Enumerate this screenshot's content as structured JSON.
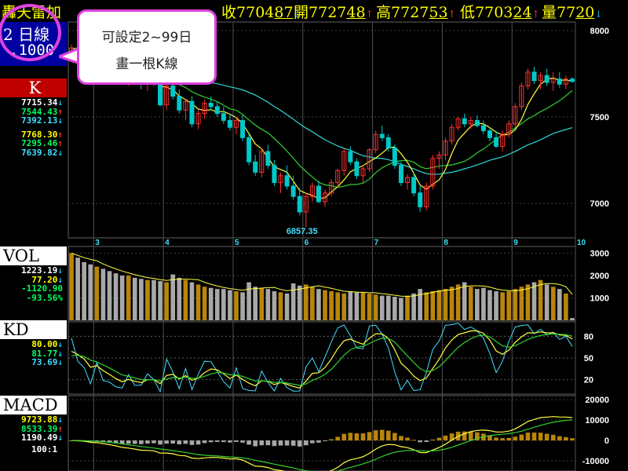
{
  "header": {
    "name": "轟天雷加",
    "close_prefix": "收",
    "close_main": "7704",
    "close_last": "87",
    "close_dir": "↓",
    "open_prefix": "開",
    "open_main": "7727",
    "open_last": "48",
    "open_dir": "↑",
    "high_prefix": "高",
    "high_main": "7727",
    "high_last": "53",
    "high_dir": "↑",
    "low_prefix": "低",
    "low_main": "7703",
    "low_last": "24",
    "low_dir": "↑",
    "vol_prefix": "量",
    "vol_main": "77",
    "vol_last": "20",
    "vol_dir": "↓"
  },
  "period": {
    "line1": "2 日線",
    "line2": ".1000"
  },
  "callout": {
    "line1": "可設定2~99日",
    "line2": "畫一根K線"
  },
  "colors": {
    "up": "#ff3030",
    "down": "#00c8c8",
    "vol_up": "#b8860b",
    "vol_down": "#a8a8a8",
    "ma_yellow": "#ffff40",
    "ma_green": "#30d030",
    "ma_cyan": "#30d8d8",
    "callout_border": "#e040e0"
  },
  "panels": {
    "k": {
      "label": "K",
      "values": [
        {
          "text": "7715.34",
          "color": "c-w",
          "arrow": "↓",
          "dir": "ar-d"
        },
        {
          "text": "7544.43",
          "color": "c-g",
          "arrow": "↑",
          "dir": "ar-u"
        },
        {
          "text": "7392.13",
          "color": "c-c",
          "arrow": "↓",
          "dir": "ar-d"
        },
        {
          "text": "7768.30",
          "color": "c-y",
          "arrow": "↑",
          "dir": "ar-u"
        },
        {
          "text": "7295.46",
          "color": "c-g",
          "arrow": "↑",
          "dir": "ar-u"
        },
        {
          "text": "7639.82",
          "color": "c-c",
          "arrow": "↓",
          "dir": "ar-d"
        }
      ]
    },
    "vol": {
      "label": "VOL",
      "values": [
        {
          "text": "1223.19",
          "color": "c-w",
          "arrow": "↓",
          "dir": "ar-d"
        },
        {
          "text": "77.20",
          "color": "c-y",
          "arrow": "↓",
          "dir": "ar-d"
        },
        {
          "text": "",
          "color": "c-w",
          "arrow": "",
          "dir": ""
        },
        {
          "text": "-1120.90",
          "color": "c-g",
          "arrow": "",
          "dir": ""
        },
        {
          "text": "-93.56%",
          "color": "c-g",
          "arrow": "",
          "dir": ""
        }
      ]
    },
    "kd": {
      "label": "KD",
      "values": [
        {
          "text": "80.00",
          "color": "c-y",
          "arrow": "↓",
          "dir": "ar-d"
        },
        {
          "text": "81.77",
          "color": "c-g",
          "arrow": "↓",
          "dir": "ar-d"
        },
        {
          "text": "73.69",
          "color": "c-c",
          "arrow": "↓",
          "dir": "ar-d"
        }
      ]
    },
    "macd": {
      "label": "MACD",
      "values": [
        {
          "text": "9723.88",
          "color": "c-y",
          "arrow": "↓",
          "dir": "ar-d"
        },
        {
          "text": "8533.39",
          "color": "c-g",
          "arrow": "↑",
          "dir": "ar-u"
        },
        {
          "text": "1190.49",
          "color": "c-w",
          "arrow": "↓",
          "dir": "ar-d"
        }
      ],
      "ratio": "100:1"
    }
  },
  "chart_data": {
    "type": "candlestick",
    "x_labels": [
      {
        "label": "3",
        "index": 4
      },
      {
        "label": "4",
        "index": 15
      },
      {
        "label": "5",
        "index": 26
      },
      {
        "label": "6",
        "index": 37
      },
      {
        "label": "7",
        "index": 48
      },
      {
        "label": "8",
        "index": 59
      },
      {
        "label": "9",
        "index": 70
      },
      {
        "label": "10",
        "index": 80
      }
    ],
    "price_ticks": [
      8000,
      7500,
      7000
    ],
    "price_range": [
      6800,
      8050
    ],
    "low_annotation": {
      "text": "6857.35",
      "index": 37
    },
    "candles": [
      [
        7860,
        7920,
        7830,
        7900
      ],
      [
        7900,
        7940,
        7860,
        7880
      ],
      [
        7880,
        7930,
        7840,
        7870
      ],
      [
        7870,
        7900,
        7800,
        7820
      ],
      [
        7820,
        7860,
        7780,
        7850
      ],
      [
        7850,
        7900,
        7800,
        7810
      ],
      [
        7810,
        7850,
        7760,
        7790
      ],
      [
        7790,
        7830,
        7740,
        7760
      ],
      [
        7760,
        7800,
        7700,
        7720
      ],
      [
        7720,
        7780,
        7680,
        7750
      ],
      [
        7750,
        7790,
        7700,
        7710
      ],
      [
        7710,
        7760,
        7660,
        7690
      ],
      [
        7690,
        7740,
        7650,
        7720
      ],
      [
        7720,
        7760,
        7680,
        7700
      ],
      [
        7700,
        7720,
        7560,
        7570
      ],
      [
        7570,
        7690,
        7540,
        7680
      ],
      [
        7680,
        7720,
        7600,
        7620
      ],
      [
        7620,
        7660,
        7520,
        7540
      ],
      [
        7540,
        7600,
        7480,
        7590
      ],
      [
        7590,
        7620,
        7440,
        7460
      ],
      [
        7460,
        7540,
        7430,
        7520
      ],
      [
        7520,
        7600,
        7490,
        7580
      ],
      [
        7580,
        7620,
        7540,
        7560
      ],
      [
        7560,
        7590,
        7500,
        7520
      ],
      [
        7520,
        7560,
        7460,
        7480
      ],
      [
        7480,
        7520,
        7420,
        7440
      ],
      [
        7440,
        7500,
        7400,
        7480
      ],
      [
        7480,
        7510,
        7360,
        7380
      ],
      [
        7380,
        7400,
        7220,
        7240
      ],
      [
        7240,
        7280,
        7160,
        7180
      ],
      [
        7180,
        7320,
        7150,
        7300
      ],
      [
        7300,
        7340,
        7200,
        7220
      ],
      [
        7220,
        7250,
        7100,
        7120
      ],
      [
        7120,
        7180,
        7060,
        7160
      ],
      [
        7160,
        7220,
        7080,
        7100
      ],
      [
        7100,
        7160,
        7020,
        7040
      ],
      [
        7040,
        7090,
        6930,
        6950
      ],
      [
        6950,
        7060,
        6860,
        7040
      ],
      [
        7040,
        7120,
        7010,
        7100
      ],
      [
        7100,
        7130,
        7000,
        7010
      ],
      [
        7010,
        7080,
        6980,
        7060
      ],
      [
        7060,
        7140,
        7040,
        7120
      ],
      [
        7120,
        7200,
        7090,
        7190
      ],
      [
        7190,
        7320,
        7160,
        7300
      ],
      [
        7300,
        7330,
        7220,
        7240
      ],
      [
        7240,
        7260,
        7140,
        7160
      ],
      [
        7160,
        7220,
        7120,
        7200
      ],
      [
        7200,
        7320,
        7180,
        7310
      ],
      [
        7310,
        7420,
        7290,
        7400
      ],
      [
        7400,
        7450,
        7360,
        7380
      ],
      [
        7380,
        7400,
        7300,
        7320
      ],
      [
        7320,
        7340,
        7200,
        7220
      ],
      [
        7220,
        7240,
        7100,
        7120
      ],
      [
        7120,
        7170,
        7080,
        7150
      ],
      [
        7150,
        7180,
        7040,
        7060
      ],
      [
        7060,
        7100,
        6950,
        6980
      ],
      [
        6980,
        7120,
        6960,
        7100
      ],
      [
        7100,
        7280,
        7080,
        7260
      ],
      [
        7260,
        7300,
        7200,
        7280
      ],
      [
        7280,
        7380,
        7250,
        7360
      ],
      [
        7360,
        7460,
        7340,
        7440
      ],
      [
        7440,
        7500,
        7420,
        7490
      ],
      [
        7490,
        7520,
        7440,
        7460
      ],
      [
        7460,
        7500,
        7430,
        7480
      ],
      [
        7480,
        7510,
        7440,
        7450
      ],
      [
        7450,
        7480,
        7400,
        7420
      ],
      [
        7420,
        7440,
        7360,
        7380
      ],
      [
        7380,
        7420,
        7320,
        7330
      ],
      [
        7330,
        7420,
        7300,
        7400
      ],
      [
        7400,
        7480,
        7380,
        7460
      ],
      [
        7460,
        7580,
        7440,
        7560
      ],
      [
        7560,
        7700,
        7540,
        7680
      ],
      [
        7680,
        7780,
        7660,
        7760
      ],
      [
        7760,
        7790,
        7690,
        7710
      ],
      [
        7710,
        7760,
        7660,
        7740
      ],
      [
        7740,
        7780,
        7680,
        7700
      ],
      [
        7700,
        7760,
        7650,
        7720
      ],
      [
        7720,
        7760,
        7670,
        7690
      ],
      [
        7690,
        7740,
        7660,
        7720
      ],
      [
        7720,
        7730,
        7700,
        7705
      ]
    ],
    "volume": {
      "ticks": [
        3000,
        2000,
        1000
      ],
      "range": [
        0,
        3300
      ],
      "values": [
        3000,
        2800,
        2600,
        2500,
        2400,
        2300,
        2200,
        2100,
        2000,
        2000,
        1900,
        1850,
        1800,
        1800,
        1750,
        1700,
        2050,
        1900,
        1800,
        1700,
        1600,
        1500,
        1450,
        1400,
        1400,
        1350,
        1300,
        1250,
        1700,
        1500,
        1450,
        1400,
        1300,
        1250,
        1200,
        1650,
        1550,
        1600,
        1500,
        1400,
        1350,
        1300,
        1250,
        1200,
        1300,
        1250,
        1250,
        1200,
        1150,
        1100,
        1100,
        1050,
        1000,
        1100,
        1200,
        1400,
        1250,
        1300,
        1350,
        1400,
        1500,
        1600,
        1700,
        1500,
        1400,
        1450,
        1350,
        1300,
        1250,
        1300,
        1400,
        1500,
        1600,
        1700,
        1800,
        1600,
        1500,
        1400,
        1200,
        100
      ]
    },
    "kd": {
      "ticks": [
        80,
        50,
        20
      ],
      "range": [
        0,
        100
      ]
    },
    "macd": {
      "ticks": [
        20000,
        10000,
        0,
        -10000
      ],
      "range": [
        -15000,
        22000
      ]
    }
  }
}
